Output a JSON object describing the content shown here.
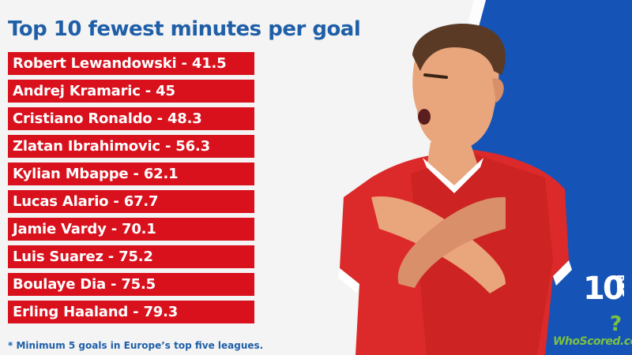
{
  "title": "Top 10 fewest minutes per goal",
  "players": [
    {
      "label": "Robert Lewandowski - 41.5"
    },
    {
      "label": "Andrej Kramaric - 45"
    },
    {
      "label": "Cristiano Ronaldo - 48.3"
    },
    {
      "label": "Zlatan Ibrahimovic - 56.3"
    },
    {
      "label": "Kylian Mbappe - 62.1"
    },
    {
      "label": "Lucas Alario - 67.7"
    },
    {
      "label": "Jamie Vardy - 70.1"
    },
    {
      "label": "Luis Suarez - 75.2"
    },
    {
      "label": "Boulaye Dia - 75.5"
    },
    {
      "label": "Erling Haaland - 79.3"
    }
  ],
  "footnote": "* Minimum 5 goals in Europe’s top five leagues.",
  "brand": {
    "ten": "10",
    "bet": "BET",
    "whoscored": "WhoScored.com",
    "whoscored_mark": "?"
  },
  "colors": {
    "title": "#1f5fa8",
    "row": "#d8111d",
    "blue_bg": "#1554b6",
    "whoscored": "#7bc142"
  }
}
